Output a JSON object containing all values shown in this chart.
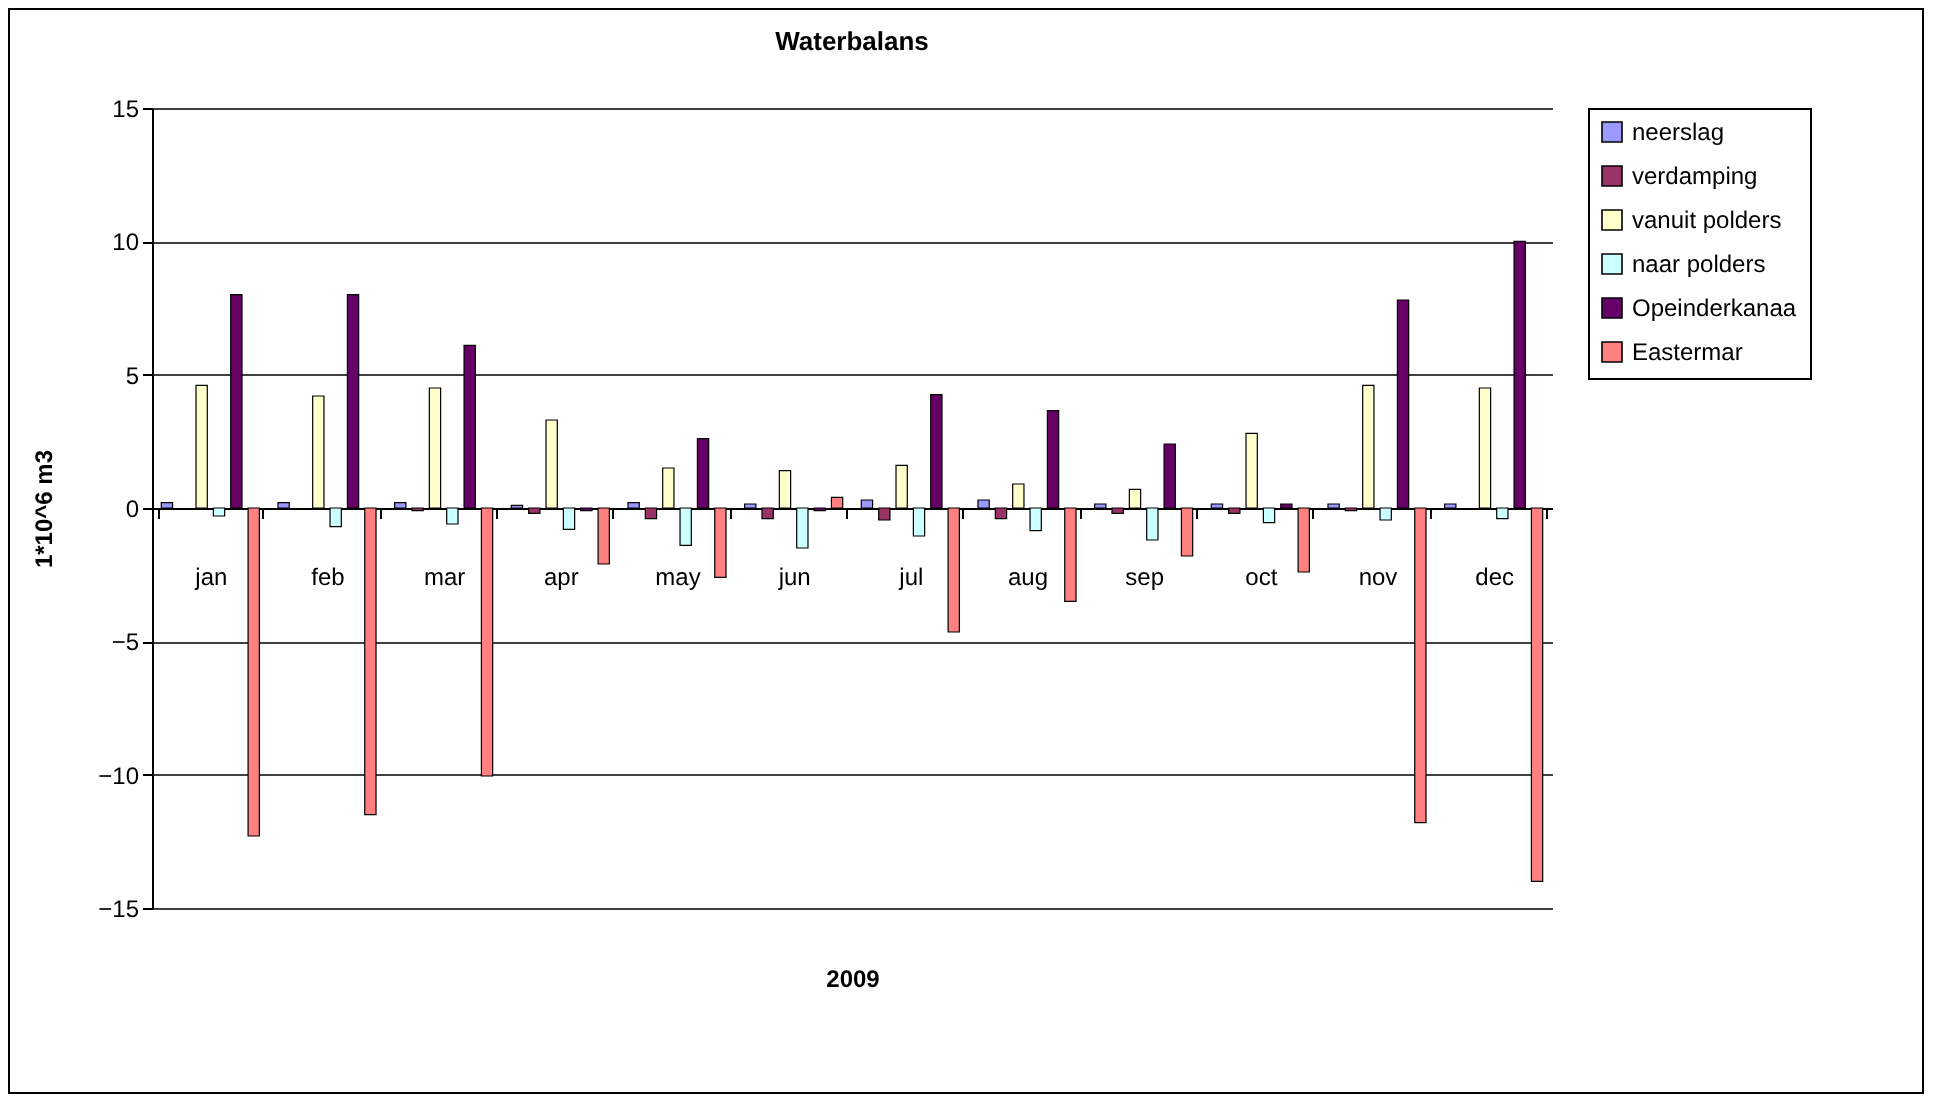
{
  "chart_data": {
    "type": "bar",
    "title": "Waterbalans",
    "xlabel": "2009",
    "ylabel": "1*10^6 m3",
    "categories": [
      "jan",
      "feb",
      "mar",
      "apr",
      "may",
      "jun",
      "jul",
      "aug",
      "sep",
      "oct",
      "nov",
      "dec"
    ],
    "series": [
      {
        "name": "neerslag",
        "color": "#9999ff",
        "values": [
          0.2,
          0.2,
          0.2,
          0.1,
          0.2,
          0.15,
          0.3,
          0.3,
          0.15,
          0.15,
          0.15,
          0.15
        ]
      },
      {
        "name": "verdamping",
        "color": "#993366",
        "values": [
          null,
          null,
          -0.1,
          -0.2,
          -0.4,
          -0.4,
          -0.45,
          -0.4,
          -0.2,
          -0.2,
          -0.1,
          null
        ]
      },
      {
        "name": "vanuit polders",
        "color": "#ffffcc",
        "values": [
          4.6,
          4.2,
          4.5,
          3.3,
          1.5,
          1.4,
          1.6,
          0.9,
          0.7,
          2.8,
          4.6,
          4.5
        ]
      },
      {
        "name": "naar polders",
        "color": "#ccffff",
        "values": [
          -0.3,
          -0.7,
          -0.6,
          -0.8,
          -1.4,
          -1.5,
          -1.05,
          -0.85,
          -1.2,
          -0.55,
          -0.45,
          -0.4
        ]
      },
      {
        "name": "Opeinderkanaa",
        "color": "#660066",
        "values": [
          8.0,
          8.0,
          6.1,
          -0.1,
          2.6,
          -0.1,
          4.25,
          3.65,
          2.4,
          0.15,
          7.8,
          10.0
        ]
      },
      {
        "name": "Eastermar",
        "color": "#ff8080",
        "values": [
          -12.3,
          -11.5,
          -10.05,
          -2.1,
          -2.6,
          0.4,
          -4.65,
          -3.5,
          -1.8,
          -2.4,
          -11.8,
          -14.0
        ]
      }
    ],
    "ylim": [
      -15,
      15
    ],
    "yticks": [
      -15,
      -10,
      -5,
      0,
      5,
      10,
      15
    ],
    "grid": "y",
    "legend": "right"
  }
}
